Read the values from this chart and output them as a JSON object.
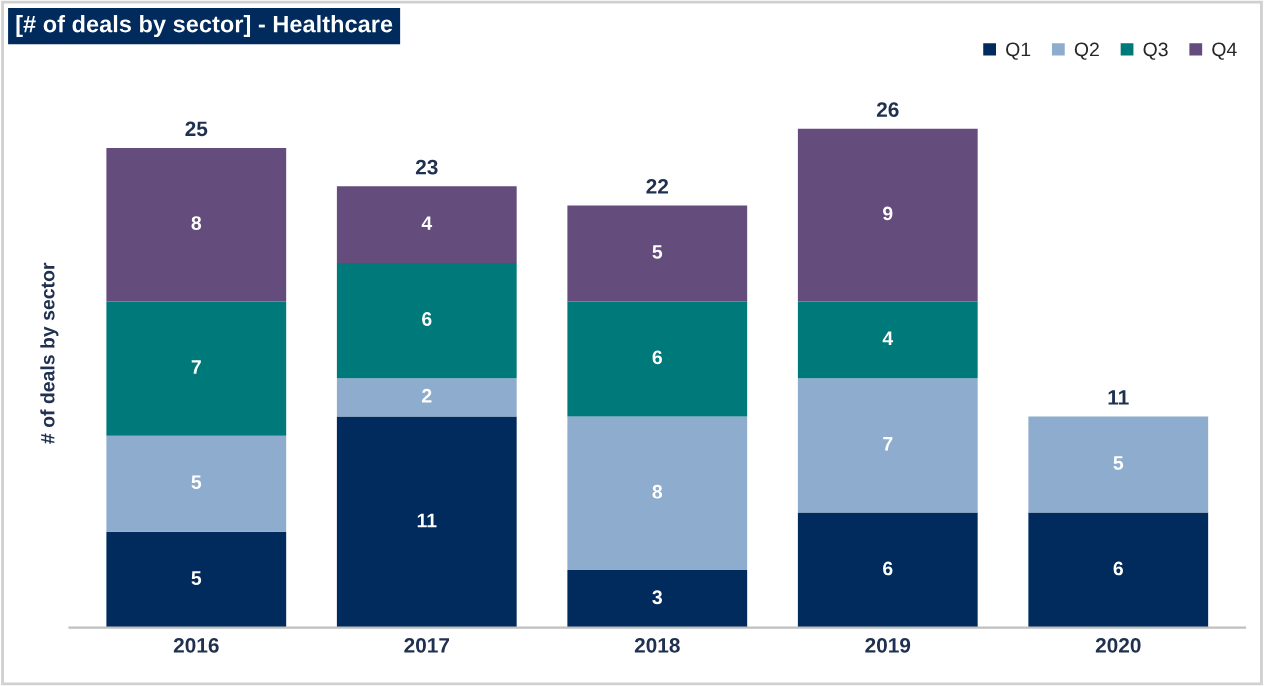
{
  "chart_data": {
    "type": "bar",
    "title": "[# of deals by sector] - Healthcare",
    "ylabel": "# of deals by sector",
    "categories": [
      "2016",
      "2017",
      "2018",
      "2019",
      "2020"
    ],
    "series": [
      {
        "name": "Q1",
        "color": "#002b5c",
        "values": [
          5,
          11,
          3,
          6,
          6
        ]
      },
      {
        "name": "Q2",
        "color": "#8eaccd",
        "values": [
          5,
          2,
          8,
          7,
          5
        ]
      },
      {
        "name": "Q3",
        "color": "#00797a",
        "values": [
          7,
          6,
          6,
          4,
          null
        ]
      },
      {
        "name": "Q4",
        "color": "#644c7c",
        "values": [
          8,
          4,
          5,
          9,
          null
        ]
      }
    ],
    "stacked": true,
    "data_labels": true,
    "totals": [
      "25",
      "23",
      "22",
      "26",
      "11"
    ],
    "legend": "top right",
    "grid": false,
    "tick_labels": "x"
  }
}
